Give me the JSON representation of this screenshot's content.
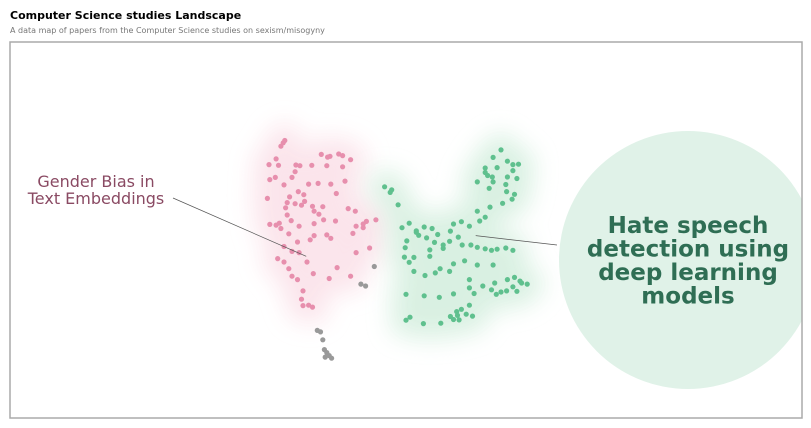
{
  "header": {
    "title": "Computer Science studies Landscape",
    "subtitle": "A data map of papers from the Computer Science studies on sexism/misogyny"
  },
  "colors": {
    "pink": "#e78fad",
    "pink_density": "#fbe3ea",
    "green": "#5fc08e",
    "green_density": "#d8f0e1",
    "outlier": "#999999",
    "pink_label": "#8a4a63",
    "green_label": "#2f6e54",
    "bubble": "#e0f2e8",
    "frame": "#aaaaaa"
  },
  "chart_data": {
    "type": "scatter",
    "title": "",
    "xlabel": "",
    "ylabel": "",
    "xlim": [
      0,
      100
    ],
    "ylim": [
      0,
      100
    ],
    "grid": false,
    "legend": "none",
    "annotations": [
      {
        "series": "Gender Bias in Text Embeddings",
        "lines": [
          "Gender Bias in",
          "Text Embeddings"
        ],
        "x": 37.4,
        "y": 43.0
      },
      {
        "series": "Hate speech detection using deep learning models",
        "lines": [
          "Hate speech",
          "detection using",
          "deep learning",
          "models"
        ],
        "x": 58.8,
        "y": 48.5
      }
    ],
    "series": [
      {
        "name": "Gender Bias in Text Embeddings",
        "color": "#e78fad",
        "points": [
          [
            34.5,
            73.2
          ],
          [
            34.7,
            73.8
          ],
          [
            34.2,
            72.3
          ],
          [
            40.4,
            69.6
          ],
          [
            41.5,
            70.2
          ],
          [
            42.0,
            69.8
          ],
          [
            39.3,
            70.1
          ],
          [
            40.1,
            69.4
          ],
          [
            43.0,
            68.7
          ],
          [
            33.6,
            68.9
          ],
          [
            32.7,
            67.4
          ],
          [
            33.9,
            67.2
          ],
          [
            36.1,
            67.3
          ],
          [
            36.6,
            67.1
          ],
          [
            38.1,
            67.2
          ],
          [
            40.0,
            67.1
          ],
          [
            42.0,
            66.8
          ],
          [
            36.0,
            65.5
          ],
          [
            35.6,
            64.0
          ],
          [
            33.5,
            64.0
          ],
          [
            32.8,
            63.4
          ],
          [
            40.5,
            62.2
          ],
          [
            42.3,
            63.0
          ],
          [
            34.6,
            62.0
          ],
          [
            37.7,
            62.2
          ],
          [
            38.9,
            62.4
          ],
          [
            37.1,
            59.4
          ],
          [
            36.4,
            60.2
          ],
          [
            41.2,
            59.7
          ],
          [
            32.5,
            58.4
          ],
          [
            35.3,
            58.8
          ],
          [
            35.0,
            57.3
          ],
          [
            36.0,
            57.0
          ],
          [
            36.8,
            56.6
          ],
          [
            37.2,
            57.6
          ],
          [
            34.8,
            55.9
          ],
          [
            38.2,
            56.3
          ],
          [
            35.0,
            54.0
          ],
          [
            38.4,
            55.0
          ],
          [
            39.5,
            56.2
          ],
          [
            39.0,
            54.2
          ],
          [
            39.6,
            52.7
          ],
          [
            42.7,
            55.7
          ],
          [
            43.6,
            55.0
          ],
          [
            32.8,
            51.5
          ],
          [
            34.0,
            51.8
          ],
          [
            34.2,
            50.4
          ],
          [
            36.5,
            51.0
          ],
          [
            38.4,
            51.7
          ],
          [
            41.1,
            52.4
          ],
          [
            45.0,
            52.3
          ],
          [
            44.6,
            51.6
          ],
          [
            35.5,
            52.5
          ],
          [
            33.6,
            51.3
          ],
          [
            46.2,
            52.7
          ],
          [
            44.6,
            50.6
          ],
          [
            43.7,
            51.0
          ],
          [
            35.2,
            49.0
          ],
          [
            38.4,
            48.5
          ],
          [
            40.0,
            48.7
          ],
          [
            37.9,
            47.4
          ],
          [
            36.3,
            46.8
          ],
          [
            40.5,
            47.8
          ],
          [
            43.3,
            49.1
          ],
          [
            34.6,
            45.6
          ],
          [
            35.6,
            44.3
          ],
          [
            36.5,
            44.0
          ],
          [
            43.7,
            44.0
          ],
          [
            45.4,
            45.2
          ],
          [
            33.8,
            42.4
          ],
          [
            34.6,
            41.5
          ],
          [
            37.5,
            41.5
          ],
          [
            41.3,
            40.0
          ],
          [
            35.2,
            39.7
          ],
          [
            35.6,
            37.7
          ],
          [
            38.3,
            38.4
          ],
          [
            43.0,
            37.7
          ],
          [
            40.3,
            37.1
          ],
          [
            36.3,
            36.8
          ],
          [
            37.0,
            33.8
          ],
          [
            36.8,
            31.6
          ],
          [
            37.7,
            30.0
          ],
          [
            37.0,
            29.9
          ],
          [
            38.2,
            29.5
          ]
        ]
      },
      {
        "name": "Hate speech detection using deep learning models",
        "color": "#5fc08e",
        "points": [
          [
            62.0,
            71.3
          ],
          [
            61.0,
            69.3
          ],
          [
            62.8,
            68.3
          ],
          [
            64.2,
            67.5
          ],
          [
            60.0,
            66.5
          ],
          [
            61.5,
            66.6
          ],
          [
            60.0,
            65.3
          ],
          [
            63.5,
            67.4
          ],
          [
            63.5,
            65.8
          ],
          [
            60.3,
            64.5
          ],
          [
            60.9,
            64.1
          ],
          [
            62.8,
            64.1
          ],
          [
            64.0,
            63.7
          ],
          [
            59.0,
            62.8
          ],
          [
            61.0,
            62.8
          ],
          [
            62.6,
            62.1
          ],
          [
            60.5,
            61.1
          ],
          [
            62.7,
            60.2
          ],
          [
            63.7,
            59.5
          ],
          [
            63.4,
            58.2
          ],
          [
            62.2,
            57.1
          ],
          [
            60.6,
            56.1
          ],
          [
            59.0,
            55.0
          ],
          [
            60.0,
            53.4
          ],
          [
            59.3,
            52.4
          ],
          [
            58.0,
            51.0
          ],
          [
            57.0,
            52.2
          ],
          [
            56.0,
            51.6
          ],
          [
            55.6,
            49.7
          ],
          [
            56.6,
            48.1
          ],
          [
            55.5,
            47.0
          ],
          [
            54.0,
            48.8
          ],
          [
            53.3,
            50.4
          ],
          [
            52.3,
            50.8
          ],
          [
            51.6,
            48.6
          ],
          [
            54.7,
            45.1
          ],
          [
            53.0,
            44.7
          ],
          [
            53.0,
            43.0
          ],
          [
            51.0,
            42.7
          ],
          [
            50.4,
            41.4
          ],
          [
            51.3,
            49.4
          ],
          [
            50.1,
            47.1
          ],
          [
            49.9,
            45.3
          ],
          [
            49.8,
            42.8
          ],
          [
            49.5,
            50.6
          ],
          [
            50.4,
            51.8
          ],
          [
            51.3,
            49.8
          ],
          [
            52.6,
            47.9
          ],
          [
            53.6,
            46.7
          ],
          [
            54.7,
            46.0
          ],
          [
            57.1,
            46.0
          ],
          [
            58.2,
            46.0
          ],
          [
            59.0,
            45.4
          ],
          [
            60.0,
            45.0
          ],
          [
            60.8,
            44.6
          ],
          [
            61.5,
            44.9
          ],
          [
            62.6,
            45.2
          ],
          [
            63.5,
            44.6
          ],
          [
            61.0,
            40.7
          ],
          [
            59.0,
            40.7
          ],
          [
            57.4,
            41.8
          ],
          [
            56.0,
            41.0
          ],
          [
            55.5,
            39.0
          ],
          [
            54.3,
            39.7
          ],
          [
            53.7,
            38.6
          ],
          [
            52.4,
            37.9
          ],
          [
            51.0,
            39.0
          ],
          [
            58.0,
            36.8
          ],
          [
            58.0,
            34.6
          ],
          [
            61.2,
            35.9
          ],
          [
            62.8,
            36.8
          ],
          [
            63.7,
            37.4
          ],
          [
            64.4,
            36.4
          ],
          [
            64.6,
            35.9
          ],
          [
            65.3,
            35.6
          ],
          [
            64.0,
            33.7
          ],
          [
            63.5,
            34.9
          ],
          [
            62.7,
            33.8
          ],
          [
            62.0,
            33.5
          ],
          [
            61.4,
            32.9
          ],
          [
            60.8,
            34.1
          ],
          [
            59.7,
            35.1
          ],
          [
            58.6,
            33.1
          ],
          [
            56.0,
            33.0
          ],
          [
            54.2,
            32.1
          ],
          [
            52.3,
            32.5
          ],
          [
            50.0,
            32.9
          ],
          [
            58.0,
            30.0
          ],
          [
            57.0,
            28.9
          ],
          [
            56.4,
            28.3
          ],
          [
            57.6,
            27.6
          ],
          [
            58.4,
            27.1
          ],
          [
            56.5,
            27.3
          ],
          [
            56.0,
            26.2
          ],
          [
            56.7,
            26.1
          ],
          [
            55.6,
            27.0
          ],
          [
            54.4,
            25.2
          ],
          [
            52.2,
            25.1
          ],
          [
            50.5,
            26.8
          ],
          [
            50.0,
            26.0
          ],
          [
            48.2,
            60.7
          ],
          [
            48.0,
            60.0
          ],
          [
            49.0,
            56.7
          ],
          [
            47.3,
            61.5
          ]
        ]
      },
      {
        "name": "",
        "color": "#999999",
        "points": [
          [
            46.0,
            40.3
          ],
          [
            44.3,
            35.6
          ],
          [
            44.9,
            35.1
          ],
          [
            38.8,
            23.3
          ],
          [
            39.2,
            22.9
          ],
          [
            39.5,
            20.8
          ],
          [
            39.7,
            18.2
          ],
          [
            40.0,
            17.4
          ],
          [
            40.3,
            16.6
          ],
          [
            39.8,
            16.2
          ],
          [
            40.6,
            15.9
          ]
        ]
      }
    ]
  }
}
